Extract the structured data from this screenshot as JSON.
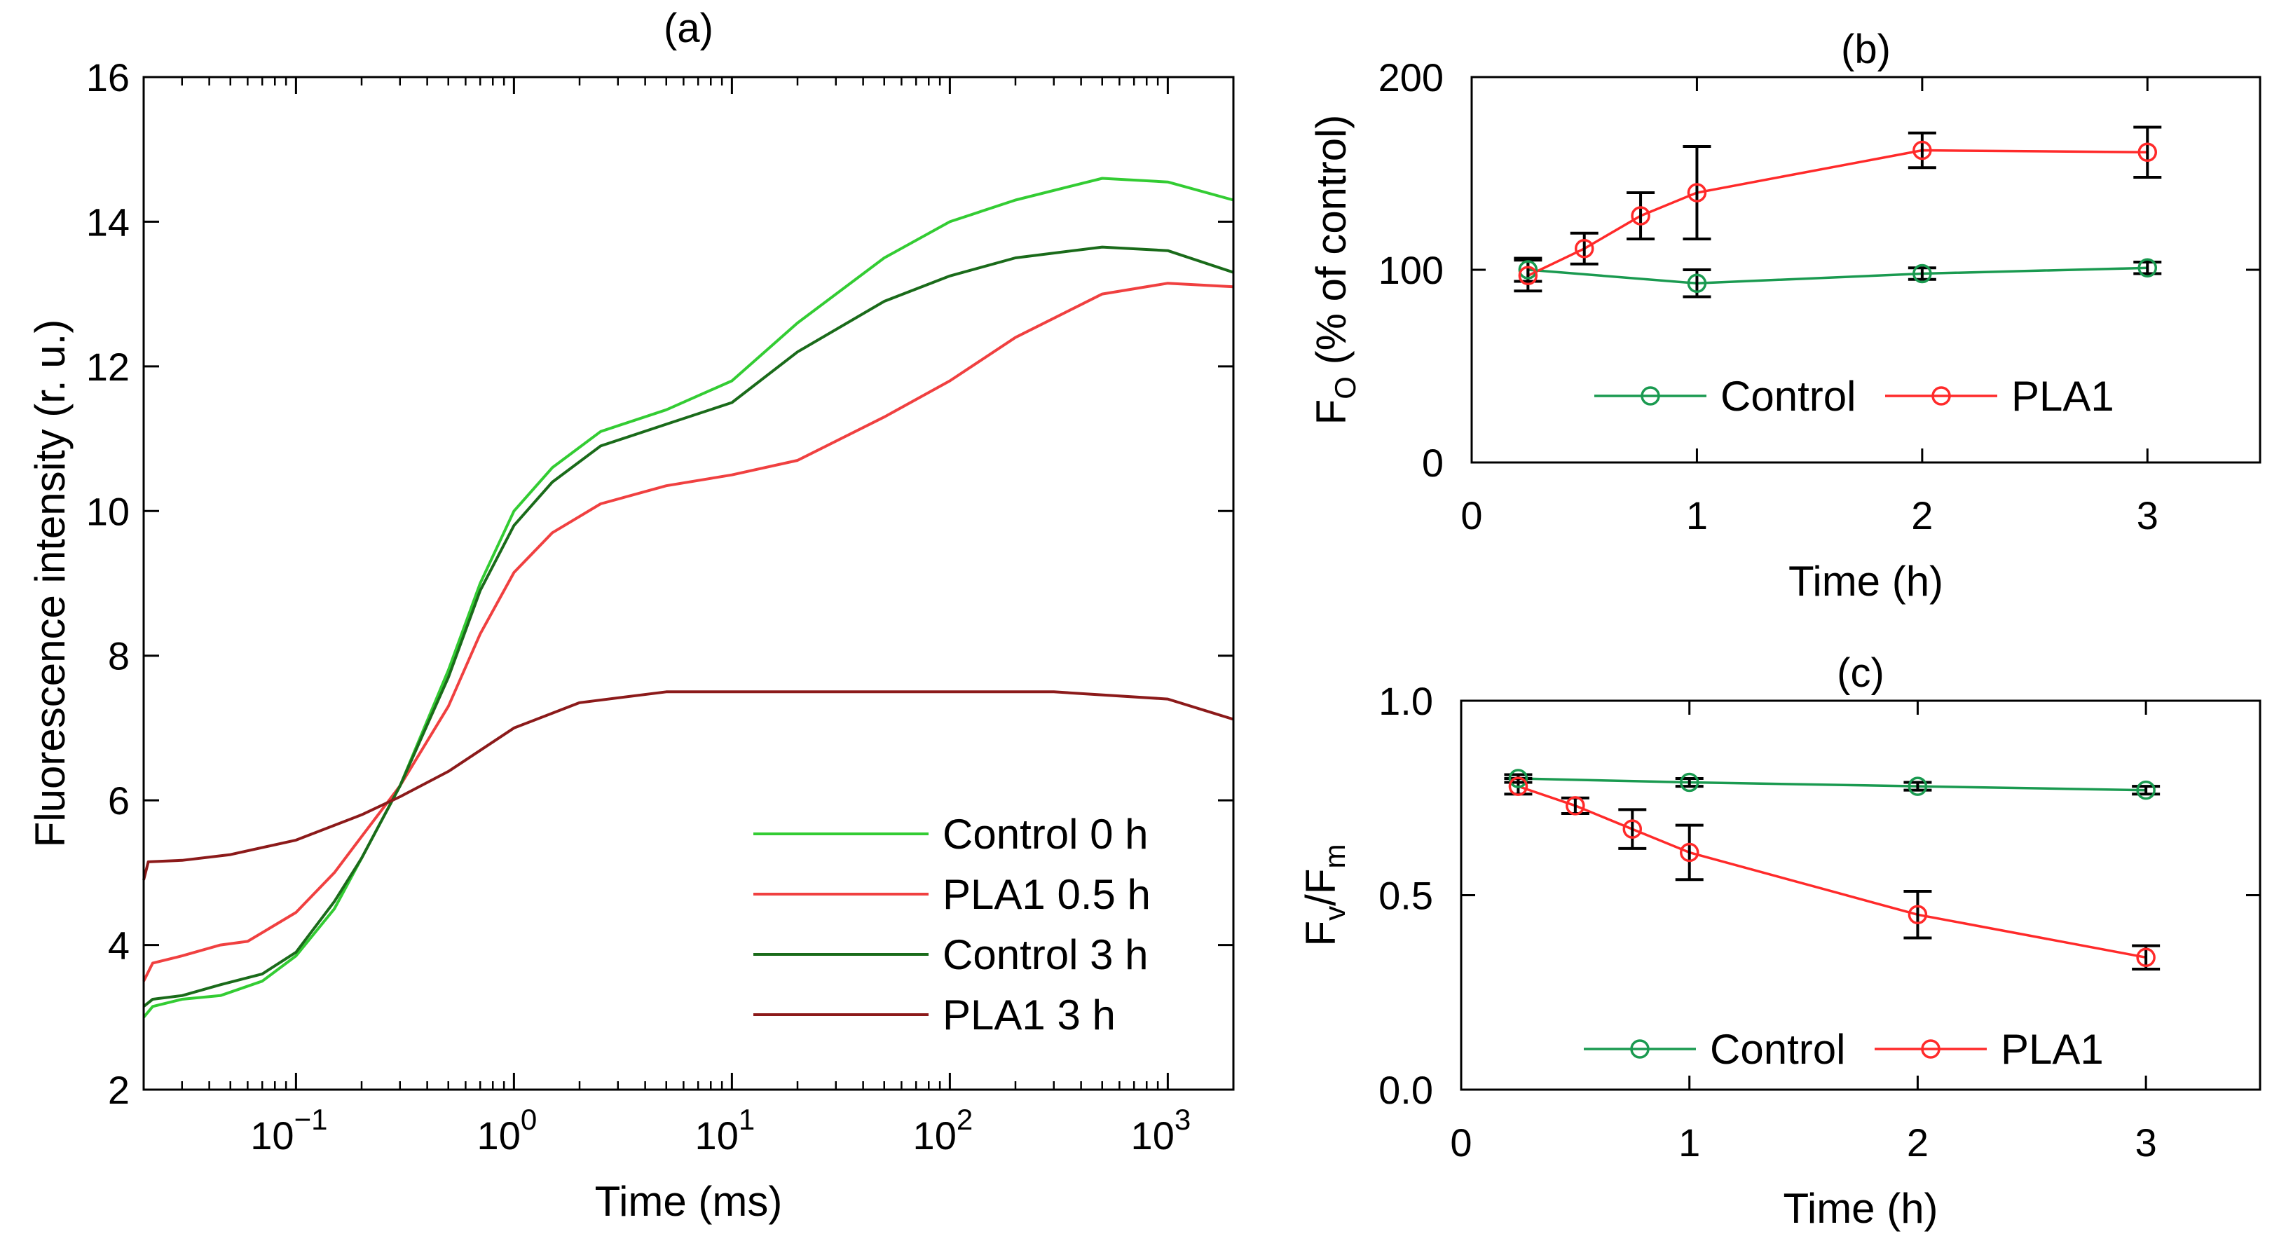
{
  "chart_data": [
    {
      "panel": "(a)",
      "type": "line",
      "title": "(a)",
      "xlabel": "Time (ms)",
      "ylabel": "Fluorescence intensity (r. u.)",
      "xscale": "log",
      "xlim": [
        0.02,
        2000
      ],
      "ylim": [
        2,
        16
      ],
      "xticks": [
        {
          "value": 0.1,
          "base": "10",
          "exp": "−1"
        },
        {
          "value": 1,
          "base": "10",
          "exp": "0"
        },
        {
          "value": 10,
          "base": "10",
          "exp": "1"
        },
        {
          "value": 100,
          "base": "10",
          "exp": "2"
        },
        {
          "value": 1000,
          "base": "10",
          "exp": "3"
        }
      ],
      "yticks": [
        2,
        4,
        6,
        8,
        10,
        12,
        14,
        16
      ],
      "legend_position": "bottom-right",
      "series": [
        {
          "name": "Control 0 h",
          "color": "#33cc33",
          "x": [
            0.02,
            0.022,
            0.03,
            0.045,
            0.07,
            0.1,
            0.15,
            0.2,
            0.3,
            0.5,
            0.7,
            1.0,
            1.5,
            2.5,
            5,
            10,
            20,
            50,
            100,
            200,
            500,
            1000,
            2000
          ],
          "y": [
            3.0,
            3.15,
            3.25,
            3.3,
            3.5,
            3.85,
            4.5,
            5.2,
            6.2,
            7.8,
            9.0,
            10.0,
            10.6,
            11.1,
            11.4,
            11.8,
            12.6,
            13.5,
            14.0,
            14.3,
            14.6,
            14.55,
            14.3
          ]
        },
        {
          "name": "PLA1 0.5 h",
          "color": "#f04040",
          "x": [
            0.02,
            0.022,
            0.03,
            0.045,
            0.06,
            0.1,
            0.15,
            0.2,
            0.3,
            0.5,
            0.7,
            1.0,
            1.5,
            2.5,
            5,
            10,
            20,
            50,
            100,
            200,
            500,
            1000,
            2000
          ],
          "y": [
            3.5,
            3.75,
            3.85,
            4.0,
            4.05,
            4.45,
            5.0,
            5.5,
            6.2,
            7.3,
            8.3,
            9.15,
            9.7,
            10.1,
            10.35,
            10.5,
            10.7,
            11.3,
            11.8,
            12.4,
            13.0,
            13.15,
            13.1
          ]
        },
        {
          "name": "Control 3 h",
          "color": "#1a6b1a",
          "x": [
            0.02,
            0.022,
            0.03,
            0.045,
            0.07,
            0.1,
            0.15,
            0.2,
            0.3,
            0.5,
            0.7,
            1.0,
            1.5,
            2.5,
            5,
            10,
            20,
            50,
            100,
            200,
            500,
            1000,
            2000
          ],
          "y": [
            3.15,
            3.25,
            3.3,
            3.45,
            3.6,
            3.9,
            4.6,
            5.2,
            6.2,
            7.7,
            8.9,
            9.8,
            10.4,
            10.9,
            11.2,
            11.5,
            12.2,
            12.9,
            13.25,
            13.5,
            13.65,
            13.6,
            13.3
          ]
        },
        {
          "name": "PLA1 3 h",
          "color": "#8c1a1a",
          "x": [
            0.02,
            0.021,
            0.03,
            0.05,
            0.1,
            0.2,
            0.3,
            0.5,
            1.0,
            2.0,
            5,
            10,
            30,
            100,
            300,
            1000,
            2000
          ],
          "y": [
            4.9,
            5.15,
            5.17,
            5.25,
            5.45,
            5.8,
            6.05,
            6.4,
            7.0,
            7.35,
            7.5,
            7.5,
            7.5,
            7.5,
            7.5,
            7.4,
            7.12
          ]
        }
      ]
    },
    {
      "panel": "(b)",
      "type": "line",
      "title": "(b)",
      "xlabel": "Time (h)",
      "ylabel_main": "F",
      "ylabel_sub": "O",
      "ylabel_rest": " (% of control)",
      "xlim": [
        0,
        3.5
      ],
      "ylim": [
        0,
        200
      ],
      "xticks": [
        0,
        1,
        2,
        3
      ],
      "yticks": [
        0,
        100,
        200
      ],
      "legend_position": "bottom-center",
      "series": [
        {
          "name": "Control",
          "color": "#1a9a50",
          "x": [
            0.25,
            1,
            2,
            3
          ],
          "y": [
            100,
            93,
            98,
            101
          ],
          "err": [
            6,
            7,
            3,
            3
          ]
        },
        {
          "name": "PLA1",
          "color": "#ff2a2a",
          "x": [
            0.25,
            0.5,
            0.75,
            1,
            2,
            3
          ],
          "y": [
            97,
            111,
            128,
            140,
            162,
            161
          ],
          "err": [
            8,
            8,
            12,
            24,
            9,
            13
          ]
        }
      ]
    },
    {
      "panel": "(c)",
      "type": "line",
      "title": "(c)",
      "xlabel": "Time (h)",
      "ylabel_parts": [
        "F",
        "v",
        "/F",
        "m"
      ],
      "xlim": [
        0,
        3.5
      ],
      "ylim": [
        0,
        1.0
      ],
      "xticks": [
        0,
        1,
        2,
        3
      ],
      "yticks": [
        "0.0",
        "0.5",
        "1.0"
      ],
      "legend_position": "bottom-center",
      "series": [
        {
          "name": "Control",
          "color": "#1a9a50",
          "x": [
            0.25,
            1,
            2,
            3
          ],
          "y": [
            0.8,
            0.79,
            0.78,
            0.77
          ],
          "err": [
            0.01,
            0.01,
            0.01,
            0.01
          ]
        },
        {
          "name": "PLA1",
          "color": "#ff2a2a",
          "x": [
            0.25,
            0.5,
            0.75,
            1,
            2,
            3
          ],
          "y": [
            0.78,
            0.73,
            0.67,
            0.61,
            0.45,
            0.34
          ],
          "err": [
            0.02,
            0.02,
            0.05,
            0.07,
            0.06,
            0.03
          ]
        }
      ]
    }
  ]
}
